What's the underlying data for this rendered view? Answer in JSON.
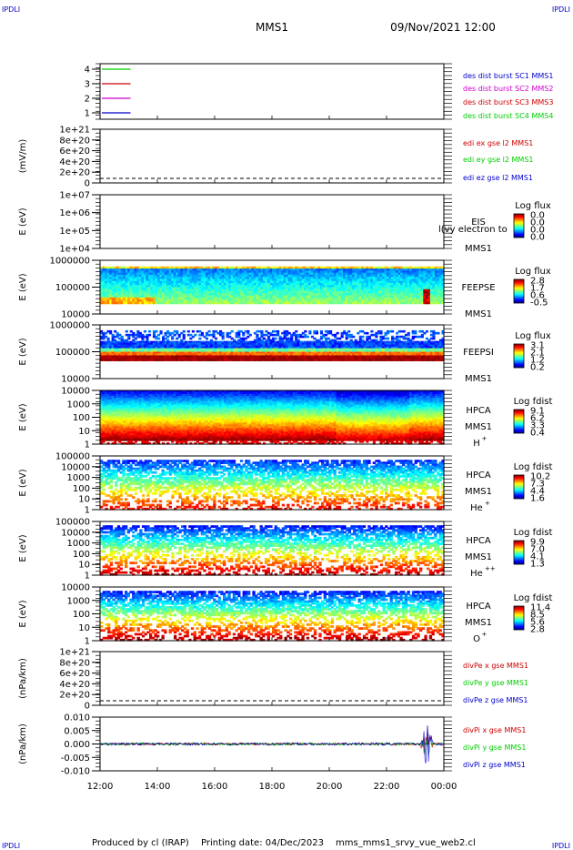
{
  "header": {
    "corner_tl": "IPDLI",
    "corner_tr": "IPDLI",
    "corner_bl": "IPDLI",
    "corner_br": "IPDLI",
    "mission": "MMS1",
    "datetime": "09/Nov/2021 12:00"
  },
  "footer": {
    "produced_by": "Produced by cl (IRAP)",
    "printing_date": "Printing date: 04/Dec/2023",
    "filename": "mms_mms1_srvy_vue_web2.cl"
  },
  "x_axis": {
    "ticks": [
      "12:00",
      "14:00",
      "16:00",
      "18:00",
      "20:00",
      "22:00",
      "00:00"
    ]
  },
  "colors": {
    "red": "#cc0000",
    "magenta": "#cc00cc",
    "green": "#00cc00",
    "blue": "#0000cc"
  },
  "chart_data": [
    {
      "type": "line",
      "id": "burst",
      "ytick_labels": [
        "4",
        "3",
        "2",
        "1"
      ],
      "legend": [
        {
          "text": "des dist burst SC1 MMS1",
          "color": "#0000cc"
        },
        {
          "text": "des dist burst SC2 MMS2",
          "color": "#cc00cc"
        },
        {
          "text": "des dist burst SC3 MMS3",
          "color": "#cc0000"
        },
        {
          "text": "des dist burst SC4 MMS4",
          "color": "#00cc00"
        }
      ],
      "series": [
        {
          "y": 4,
          "color": "#00cc00",
          "x_range": [
            "12:00",
            "13:00"
          ]
        },
        {
          "y": 3,
          "color": "#cc0000",
          "x_range": [
            "12:00",
            "13:00"
          ]
        },
        {
          "y": 2,
          "color": "#cc00cc",
          "x_range": [
            "12:00",
            "13:00"
          ]
        },
        {
          "y": 1,
          "color": "#0000cc",
          "x_range": [
            "12:00",
            "13:00"
          ]
        }
      ]
    },
    {
      "type": "line",
      "id": "edi",
      "ylabel": "(mV/m)",
      "ytick_labels": [
        "1e+21",
        "8e+20",
        "6e+20",
        "4e+20",
        "2e+20",
        "0"
      ],
      "zero_line": "dashed",
      "legend": [
        {
          "text": "edi ex gse l2 MMS1",
          "color": "#cc0000"
        },
        {
          "text": "edi ey gse l2 MMS1",
          "color": "#00cc00"
        },
        {
          "text": "edi ez gse l2 MMS1",
          "color": "#0000cc"
        }
      ]
    },
    {
      "type": "heatmap",
      "id": "eis",
      "ylabel": "E (eV)",
      "ytick_labels": [
        "1e+07",
        "1e+06",
        "1e+05",
        "1e+04"
      ],
      "scale": "log",
      "labels": [
        "EIS",
        "MMS1"
      ],
      "overlay_text": "l(vy electron to",
      "cbar_title": "Log flux",
      "cbar_ticks": [
        "0.0",
        "0.0",
        "0.0",
        "0.0"
      ]
    },
    {
      "type": "heatmap",
      "id": "feepse",
      "ylabel": "E (eV)",
      "ytick_labels": [
        "1000000",
        "100000",
        "10000"
      ],
      "scale": "log",
      "labels": [
        "FEEPSE",
        "MMS1"
      ],
      "cbar_title": "Log flux",
      "cbar_ticks": [
        "2.8",
        "1.7",
        "0.6",
        "-0.5"
      ]
    },
    {
      "type": "heatmap",
      "id": "feepsi",
      "ylabel": "E (eV)",
      "ytick_labels": [
        "1000000",
        "100000",
        "10000"
      ],
      "scale": "log",
      "labels": [
        "FEEPSI",
        "MMS1"
      ],
      "cbar_title": "Log flux",
      "cbar_ticks": [
        "3.1",
        "2.1",
        "1.2",
        "0.2"
      ]
    },
    {
      "type": "heatmap",
      "id": "hpca_h",
      "ylabel": "E (eV)",
      "ytick_labels": [
        "10000",
        "1000",
        "100",
        "10",
        "1"
      ],
      "scale": "log",
      "labels": [
        "HPCA",
        "MMS1"
      ],
      "species": "H",
      "species_sup": "+",
      "cbar_title": "Log fdist",
      "cbar_ticks": [
        "9.1",
        "6.2",
        "3.3",
        "0.4"
      ]
    },
    {
      "type": "heatmap",
      "id": "hpca_he",
      "ylabel": "E (eV)",
      "ytick_labels": [
        "100000",
        "10000",
        "1000",
        "100",
        "10",
        "1"
      ],
      "scale": "log",
      "labels": [
        "HPCA",
        "MMS1"
      ],
      "species": "He",
      "species_sup": "+",
      "cbar_title": "Log fdist",
      "cbar_ticks": [
        "10.2",
        "7.3",
        "4.4",
        "1.6"
      ]
    },
    {
      "type": "heatmap",
      "id": "hpca_hepp",
      "ylabel": "E (eV)",
      "ytick_labels": [
        "100000",
        "10000",
        "1000",
        "100",
        "10",
        "1"
      ],
      "scale": "log",
      "labels": [
        "HPCA",
        "MMS1"
      ],
      "species": "He",
      "species_sup": "++",
      "cbar_title": "Log fdist",
      "cbar_ticks": [
        "9.9",
        "7.0",
        "4.1",
        "1.3"
      ]
    },
    {
      "type": "heatmap",
      "id": "hpca_o",
      "ylabel": "E (eV)",
      "ytick_labels": [
        "10000",
        "1000",
        "100",
        "10",
        "1"
      ],
      "scale": "log",
      "labels": [
        "HPCA",
        "MMS1"
      ],
      "species": "O",
      "species_sup": "+",
      "cbar_title": "Log fdist",
      "cbar_ticks": [
        "11.4",
        "8.5",
        "5.6",
        "2.8"
      ]
    },
    {
      "type": "line",
      "id": "divpe",
      "ylabel": "(nPa/km)",
      "ytick_labels": [
        "1e+21",
        "8e+20",
        "6e+20",
        "4e+20",
        "2e+20",
        "0"
      ],
      "zero_line": "dashed",
      "legend": [
        {
          "text": "divPe x gse MMS1",
          "color": "#cc0000"
        },
        {
          "text": "divPe y gse MMS1",
          "color": "#00cc00"
        },
        {
          "text": "divPe z gse MMS1",
          "color": "#0000cc"
        }
      ]
    },
    {
      "type": "line",
      "id": "divpi",
      "ylabel": "(nPa/km)",
      "ytick_labels": [
        "0.010",
        "0.005",
        "0.000",
        "-0.005",
        "-0.010"
      ],
      "ylim": [
        -0.012,
        0.012
      ],
      "legend": [
        {
          "text": "divPi x gse MMS1",
          "color": "#cc0000"
        },
        {
          "text": "divPi y gse MMS1",
          "color": "#00cc00"
        },
        {
          "text": "divPi z gse MMS1",
          "color": "#0000cc"
        }
      ]
    }
  ]
}
